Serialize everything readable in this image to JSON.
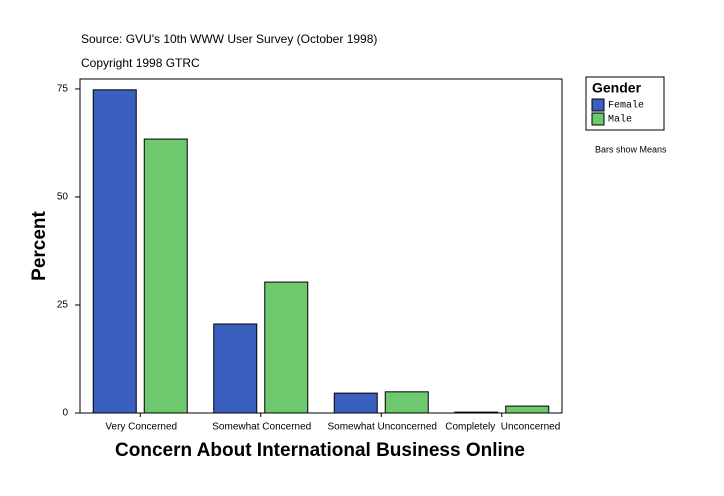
{
  "chart_data": {
    "type": "bar",
    "subtitle": "Source: GVU's 10th WWW User Survey (October 1998)",
    "copyright": "Copyright 1998 GTRC",
    "y_label": "Percent",
    "x_label": "Concern About International Business Online",
    "legend_title": "Gender",
    "note": "Bars show Means",
    "categories": [
      "Very Concerned",
      "Somewhat Concerned",
      "Somewhat Unconcerned",
      "Completely  Unconcerned"
    ],
    "series": [
      {
        "name": "Female",
        "color": "#3a5fbf",
        "values": [
          74.8,
          20.6,
          4.6,
          0.2
        ]
      },
      {
        "name": "Male",
        "color": "#6ec96e",
        "values": [
          63.4,
          30.3,
          4.9,
          1.6
        ]
      }
    ],
    "ylim": [
      0,
      77.3
    ],
    "yticks": [
      0,
      25,
      50,
      75
    ],
    "legend": "right"
  }
}
